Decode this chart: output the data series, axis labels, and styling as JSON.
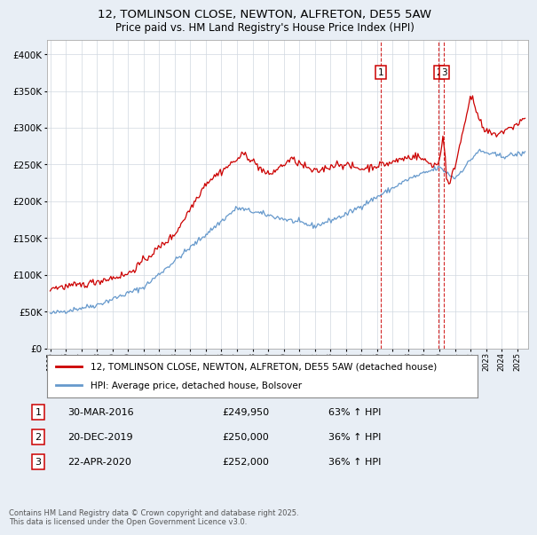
{
  "title": "12, TOMLINSON CLOSE, NEWTON, ALFRETON, DE55 5AW",
  "subtitle": "Price paid vs. HM Land Registry's House Price Index (HPI)",
  "legend_line1": "12, TOMLINSON CLOSE, NEWTON, ALFRETON, DE55 5AW (detached house)",
  "legend_line2": "HPI: Average price, detached house, Bolsover",
  "footnote": "Contains HM Land Registry data © Crown copyright and database right 2025.\nThis data is licensed under the Open Government Licence v3.0.",
  "transactions": [
    {
      "num": "1",
      "date": "30-MAR-2016",
      "price": "£249,950",
      "change": "63% ↑ HPI",
      "year": 2016.24
    },
    {
      "num": "2",
      "date": "20-DEC-2019",
      "price": "£250,000",
      "change": "36% ↑ HPI",
      "year": 2019.97
    },
    {
      "num": "3",
      "date": "22-APR-2020",
      "price": "£252,000",
      "change": "36% ↑ HPI",
      "year": 2020.31
    }
  ],
  "price_color": "#cc0000",
  "hpi_color": "#6699cc",
  "background_color": "#e8eef5",
  "plot_bg_color": "#ffffff",
  "ylim": [
    0,
    420000
  ],
  "xlim_start": 1994.8,
  "xlim_end": 2025.7
}
